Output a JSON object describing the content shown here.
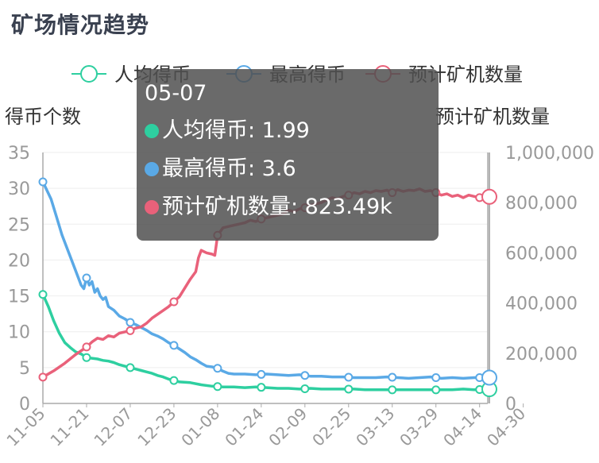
{
  "page": {
    "title": "矿场情况趋势"
  },
  "colors": {
    "avg": "#2ecfa0",
    "max": "#5aa9e6",
    "rigs": "#e9617a",
    "axis": "#aaaaaa",
    "grid": "#eeeeee"
  },
  "tooltip": {
    "date": "05-07",
    "rows": [
      {
        "label": "人均得币: 1.99",
        "color": "#2ecfa0"
      },
      {
        "label": "最高得币: 3.6",
        "color": "#5aa9e6"
      },
      {
        "label": "预计矿机数量: 823.49k",
        "color": "#e9617a"
      }
    ]
  },
  "chart_data": {
    "type": "line",
    "legend": [
      "人均得币",
      "最高得币",
      "预计矿机数量"
    ],
    "legend_position": "top",
    "x_ticks": [
      "11-05",
      "11-21",
      "12-07",
      "12-23",
      "01-08",
      "01-24",
      "02-09",
      "02-25",
      "03-13",
      "03-29",
      "04-14",
      "04-30"
    ],
    "x_range": [
      "11-05",
      "05-07"
    ],
    "y_left": {
      "label": "得币个数",
      "ticks": [
        "35",
        "30",
        "25",
        "20",
        "15",
        "10",
        "5",
        "0"
      ],
      "range": [
        0,
        35
      ]
    },
    "y_right": {
      "label": "预计矿机数量",
      "ticks": [
        "1,000,000",
        "800,000",
        "600,000",
        "400,000",
        "200,000",
        "0"
      ],
      "range": [
        0,
        1000000
      ]
    },
    "grid": true,
    "series": [
      {
        "name": "人均得币",
        "axis": "left",
        "points": [
          [
            0,
            15.2
          ],
          [
            2,
            13.5
          ],
          [
            4,
            11.5
          ],
          [
            6,
            9.8
          ],
          [
            8,
            8.5
          ],
          [
            10,
            7.8
          ],
          [
            12,
            7.2
          ],
          [
            14,
            6.9
          ],
          [
            16,
            6.4
          ],
          [
            18,
            6.3
          ],
          [
            20,
            6.2
          ],
          [
            22,
            6.0
          ],
          [
            24,
            5.9
          ],
          [
            26,
            5.7
          ],
          [
            28,
            5.4
          ],
          [
            30,
            5.2
          ],
          [
            32,
            5.0
          ],
          [
            34,
            4.8
          ],
          [
            36,
            4.6
          ],
          [
            38,
            4.4
          ],
          [
            40,
            4.2
          ],
          [
            42,
            3.9
          ],
          [
            44,
            3.7
          ],
          [
            46,
            3.4
          ],
          [
            48,
            3.2
          ],
          [
            50,
            3.0
          ],
          [
            54,
            2.9
          ],
          [
            58,
            2.6
          ],
          [
            62,
            2.4
          ],
          [
            66,
            2.3
          ],
          [
            70,
            2.3
          ],
          [
            74,
            2.2
          ],
          [
            78,
            2.3
          ],
          [
            82,
            2.2
          ],
          [
            86,
            2.1
          ],
          [
            90,
            2.1
          ],
          [
            94,
            2.0
          ],
          [
            98,
            2.1
          ],
          [
            102,
            2.0
          ],
          [
            106,
            2.0
          ],
          [
            110,
            2.0
          ],
          [
            114,
            2.0
          ],
          [
            118,
            1.9
          ],
          [
            122,
            1.9
          ],
          [
            126,
            1.9
          ],
          [
            130,
            1.9
          ],
          [
            134,
            1.9
          ],
          [
            138,
            1.9
          ],
          [
            142,
            1.9
          ],
          [
            146,
            1.9
          ],
          [
            150,
            1.9
          ],
          [
            154,
            2.0
          ],
          [
            158,
            1.9
          ],
          [
            163,
            1.99
          ]
        ]
      },
      {
        "name": "最高得币",
        "axis": "left",
        "points": [
          [
            0,
            30.9
          ],
          [
            3,
            28.5
          ],
          [
            5,
            26.0
          ],
          [
            7,
            23.5
          ],
          [
            9,
            21.5
          ],
          [
            11,
            19.5
          ],
          [
            13,
            17.5
          ],
          [
            14,
            16.5
          ],
          [
            15,
            16.0
          ],
          [
            16,
            17.5
          ],
          [
            17,
            16.5
          ],
          [
            18,
            17.0
          ],
          [
            19,
            15.5
          ],
          [
            20,
            16.0
          ],
          [
            21,
            15.0
          ],
          [
            22,
            14.5
          ],
          [
            23,
            14.8
          ],
          [
            24,
            13.5
          ],
          [
            26,
            13.0
          ],
          [
            28,
            12.2
          ],
          [
            30,
            11.8
          ],
          [
            32,
            11.3
          ],
          [
            34,
            11.0
          ],
          [
            36,
            10.6
          ],
          [
            38,
            10.2
          ],
          [
            40,
            9.7
          ],
          [
            42,
            9.4
          ],
          [
            44,
            9.0
          ],
          [
            46,
            8.5
          ],
          [
            48,
            8.1
          ],
          [
            50,
            7.6
          ],
          [
            52,
            7.1
          ],
          [
            54,
            6.5
          ],
          [
            56,
            6.1
          ],
          [
            58,
            5.6
          ],
          [
            60,
            5.2
          ],
          [
            62,
            5.1
          ],
          [
            64,
            4.9
          ],
          [
            66,
            4.5
          ],
          [
            68,
            4.2
          ],
          [
            70,
            4.1
          ],
          [
            74,
            4.1
          ],
          [
            78,
            4.0
          ],
          [
            82,
            4.1
          ],
          [
            86,
            4.0
          ],
          [
            90,
            3.9
          ],
          [
            94,
            4.0
          ],
          [
            98,
            3.8
          ],
          [
            102,
            3.8
          ],
          [
            106,
            3.7
          ],
          [
            110,
            3.7
          ],
          [
            114,
            3.6
          ],
          [
            118,
            3.6
          ],
          [
            122,
            3.6
          ],
          [
            126,
            3.7
          ],
          [
            130,
            3.6
          ],
          [
            134,
            3.5
          ],
          [
            138,
            3.6
          ],
          [
            142,
            3.7
          ],
          [
            146,
            3.5
          ],
          [
            150,
            3.6
          ],
          [
            154,
            3.5
          ],
          [
            158,
            3.6
          ],
          [
            163,
            3.6
          ]
        ]
      },
      {
        "name": "预计矿机数量",
        "axis": "right",
        "points": [
          [
            0,
            105000
          ],
          [
            4,
            130000
          ],
          [
            8,
            160000
          ],
          [
            12,
            195000
          ],
          [
            16,
            225000
          ],
          [
            18,
            245000
          ],
          [
            20,
            260000
          ],
          [
            22,
            255000
          ],
          [
            24,
            270000
          ],
          [
            26,
            265000
          ],
          [
            28,
            280000
          ],
          [
            30,
            285000
          ],
          [
            32,
            290000
          ],
          [
            34,
            300000
          ],
          [
            36,
            305000
          ],
          [
            38,
            320000
          ],
          [
            40,
            340000
          ],
          [
            42,
            355000
          ],
          [
            44,
            370000
          ],
          [
            46,
            385000
          ],
          [
            48,
            405000
          ],
          [
            50,
            425000
          ],
          [
            52,
            460000
          ],
          [
            54,
            495000
          ],
          [
            56,
            525000
          ],
          [
            57,
            580000
          ],
          [
            58,
            610000
          ],
          [
            60,
            600000
          ],
          [
            62,
            595000
          ],
          [
            63,
            590000
          ],
          [
            64,
            670000
          ],
          [
            66,
            700000
          ],
          [
            68,
            705000
          ],
          [
            70,
            710000
          ],
          [
            72,
            715000
          ],
          [
            74,
            720000
          ],
          [
            76,
            730000
          ],
          [
            78,
            725000
          ],
          [
            80,
            735000
          ],
          [
            82,
            740000
          ],
          [
            84,
            745000
          ],
          [
            86,
            750000
          ],
          [
            88,
            755000
          ],
          [
            90,
            770000
          ],
          [
            92,
            765000
          ],
          [
            94,
            775000
          ],
          [
            96,
            780000
          ],
          [
            98,
            790000
          ],
          [
            100,
            795000
          ],
          [
            102,
            800000
          ],
          [
            104,
            810000
          ],
          [
            106,
            820000
          ],
          [
            108,
            815000
          ],
          [
            110,
            825000
          ],
          [
            112,
            830000
          ],
          [
            114,
            840000
          ],
          [
            116,
            835000
          ],
          [
            118,
            845000
          ],
          [
            120,
            840000
          ],
          [
            122,
            848000
          ],
          [
            124,
            845000
          ],
          [
            126,
            850000
          ],
          [
            128,
            840000
          ],
          [
            130,
            852000
          ],
          [
            132,
            845000
          ],
          [
            134,
            850000
          ],
          [
            136,
            848000
          ],
          [
            138,
            855000
          ],
          [
            140,
            845000
          ],
          [
            142,
            848000
          ],
          [
            144,
            840000
          ],
          [
            146,
            830000
          ],
          [
            148,
            835000
          ],
          [
            150,
            825000
          ],
          [
            152,
            830000
          ],
          [
            154,
            820000
          ],
          [
            156,
            830000
          ],
          [
            158,
            825000
          ],
          [
            160,
            820000
          ],
          [
            163,
            823490
          ]
        ]
      }
    ],
    "markers": [
      0,
      16,
      32,
      48,
      64,
      80,
      96,
      112,
      128,
      144,
      160
    ]
  }
}
